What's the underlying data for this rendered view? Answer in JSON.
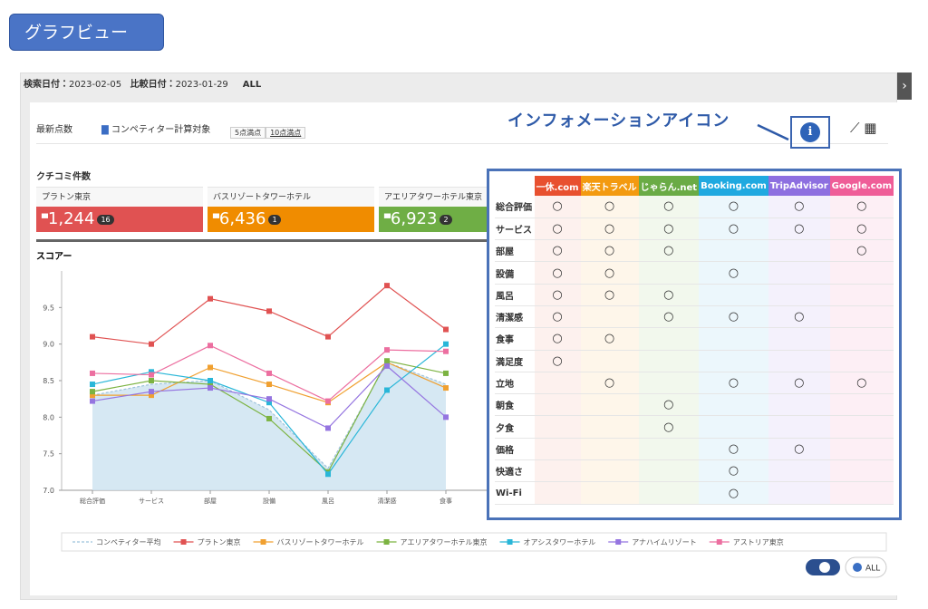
{
  "header": {
    "button": "グラフビュー"
  },
  "toolbar": {
    "search_label": "検索日付：",
    "search_date": "2023-02-05",
    "compare_label": "比較日付：",
    "compare_date": "2023-01-29",
    "scope": "ALL"
  },
  "panel": {
    "latest": "最新点数",
    "competitor": "コンペティター計算対象",
    "scale5": "5点満点",
    "scale10": "10点満点"
  },
  "annotation": "インフォメーションアイコン",
  "review_counts": {
    "title": "クチコミ件数",
    "cards": [
      {
        "name": "プラトン東京",
        "count": "1,244",
        "change": "16",
        "color": "#e05252"
      },
      {
        "name": "バスリゾートタワーホテル",
        "count": "6,436",
        "change": "1",
        "color": "#f08c00"
      },
      {
        "name": "アエリアタワーホテル東京",
        "count": "6,923",
        "change": "2",
        "color": "#6fae45"
      }
    ]
  },
  "chart_data": {
    "type": "line",
    "title": "スコアー",
    "categories": [
      "総合評価",
      "サービス",
      "部屋",
      "設備",
      "風呂",
      "清潔感",
      "食事"
    ],
    "ylim": [
      7,
      10
    ],
    "yticks": [
      {
        "value": 7,
        "label": "7.0"
      },
      {
        "value": 7.5,
        "label": "7.5"
      },
      {
        "value": 8,
        "label": "8.0"
      },
      {
        "value": 8.5,
        "label": "8.5"
      },
      {
        "value": 9,
        "label": "9.0"
      },
      {
        "value": 9.5,
        "label": "9.5"
      }
    ],
    "series": [
      {
        "name": "コンペティター平均",
        "color": "#9ec3dc",
        "dashed": true,
        "area": "#cfe4f1",
        "values": [
          8.3,
          8.45,
          8.5,
          8.1,
          7.3,
          8.75,
          8.45
        ]
      },
      {
        "name": "プラトン東京",
        "color": "#e05252",
        "values": [
          9.1,
          9.0,
          9.62,
          9.45,
          9.1,
          9.8,
          9.2
        ]
      },
      {
        "name": "バスリゾートタワーホテル",
        "color": "#f0a030",
        "values": [
          8.3,
          8.3,
          8.68,
          8.45,
          8.2,
          8.75,
          8.4
        ]
      },
      {
        "name": "アエリアタワーホテル東京",
        "color": "#7cb342",
        "values": [
          8.35,
          8.5,
          8.45,
          7.98,
          7.25,
          8.77,
          8.6
        ]
      },
      {
        "name": "オアシスタワーホテル",
        "color": "#29b6d8",
        "values": [
          8.45,
          8.62,
          8.5,
          8.2,
          7.22,
          8.37,
          9.0
        ]
      },
      {
        "name": "アナハイムリゾート",
        "color": "#9575e0",
        "values": [
          8.22,
          8.35,
          8.4,
          8.25,
          7.85,
          8.7,
          8.0
        ]
      },
      {
        "name": "アストリア東京",
        "color": "#ec6fa0",
        "values": [
          8.6,
          8.58,
          8.98,
          8.6,
          8.22,
          8.92,
          8.9
        ]
      }
    ]
  },
  "info_table": {
    "columns": [
      {
        "name": "一休.com",
        "color": "#e8502f",
        "tint": "#fdf1ee"
      },
      {
        "name": "楽天トラベル",
        "color": "#f39a10",
        "tint": "#fef6ea"
      },
      {
        "name": "じゃらん.net",
        "color": "#6aab45",
        "tint": "#f2f8ed"
      },
      {
        "name": "Booking.com",
        "color": "#1fa9e0",
        "tint": "#ecf7fc"
      },
      {
        "name": "TripAdvisor",
        "color": "#8d6fe0",
        "tint": "#f4f1fc"
      },
      {
        "name": "Google.com",
        "color": "#ef5d98",
        "tint": "#fdeff5"
      }
    ],
    "rows": [
      {
        "label": "総合評価",
        "cells": [
          "○",
          "○",
          "○",
          "○",
          "○",
          "○"
        ]
      },
      {
        "label": "サービス",
        "cells": [
          "○",
          "○",
          "○",
          "○",
          "○",
          "○"
        ]
      },
      {
        "label": "部屋",
        "cells": [
          "○",
          "○",
          "○",
          null,
          null,
          "○"
        ]
      },
      {
        "label": "設備",
        "cells": [
          "○",
          "○",
          null,
          "○",
          null,
          null
        ]
      },
      {
        "label": "風呂",
        "cells": [
          "○",
          "○",
          "○",
          null,
          null,
          null
        ]
      },
      {
        "label": "清潔感",
        "cells": [
          "○",
          null,
          "○",
          "○",
          "○",
          null
        ]
      },
      {
        "label": "食事",
        "cells": [
          "○",
          "○",
          null,
          null,
          null,
          null
        ]
      },
      {
        "label": "満足度",
        "cells": [
          "○",
          null,
          null,
          null,
          null,
          null
        ]
      },
      {
        "label": "立地",
        "cells": [
          null,
          "○",
          null,
          "○",
          "○",
          "○"
        ]
      },
      {
        "label": "朝食",
        "cells": [
          null,
          null,
          "○",
          null,
          null,
          null
        ]
      },
      {
        "label": "夕食",
        "cells": [
          null,
          null,
          "○",
          null,
          null,
          null
        ]
      },
      {
        "label": "価格",
        "cells": [
          null,
          null,
          null,
          "○",
          "○",
          null
        ]
      },
      {
        "label": "快適さ",
        "cells": [
          null,
          null,
          null,
          "○",
          null,
          null
        ]
      },
      {
        "label": "Wi-Fi",
        "cells": [
          null,
          null,
          null,
          "○",
          null,
          null
        ]
      }
    ]
  },
  "footer": {
    "all_button": "ALL"
  }
}
